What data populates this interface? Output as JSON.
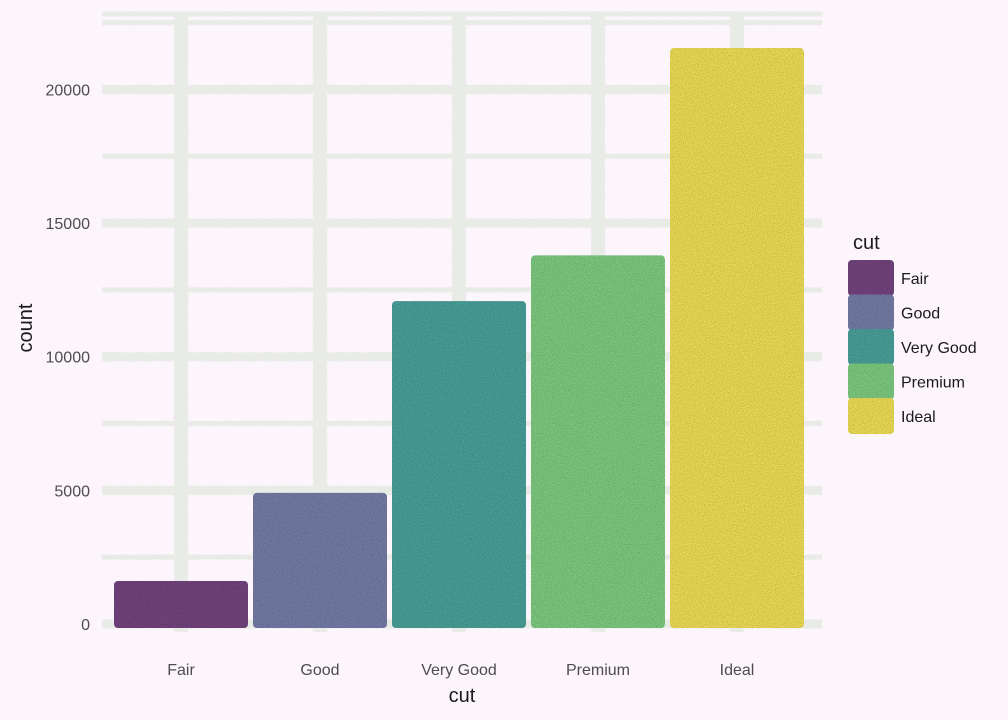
{
  "chart_data": {
    "type": "bar",
    "categories": [
      "Fair",
      "Good",
      "Very Good",
      "Premium",
      "Ideal"
    ],
    "values": [
      1610,
      4906,
      12082,
      13791,
      21551
    ],
    "colors": [
      "#7a4886",
      "#7b83b0",
      "#4fa9a2",
      "#85d688",
      "#fbe95c"
    ],
    "xlabel": "cut",
    "ylabel": "count",
    "ylim": [
      0,
      22600
    ],
    "yticks": [
      0,
      5000,
      10000,
      15000,
      20000
    ],
    "grid": true,
    "legend": {
      "title": "cut",
      "position": "right",
      "items": [
        "Fair",
        "Good",
        "Very Good",
        "Premium",
        "Ideal"
      ]
    }
  },
  "colors": {
    "background": "#fcf5fb",
    "gridline": "#e8ebe6"
  }
}
